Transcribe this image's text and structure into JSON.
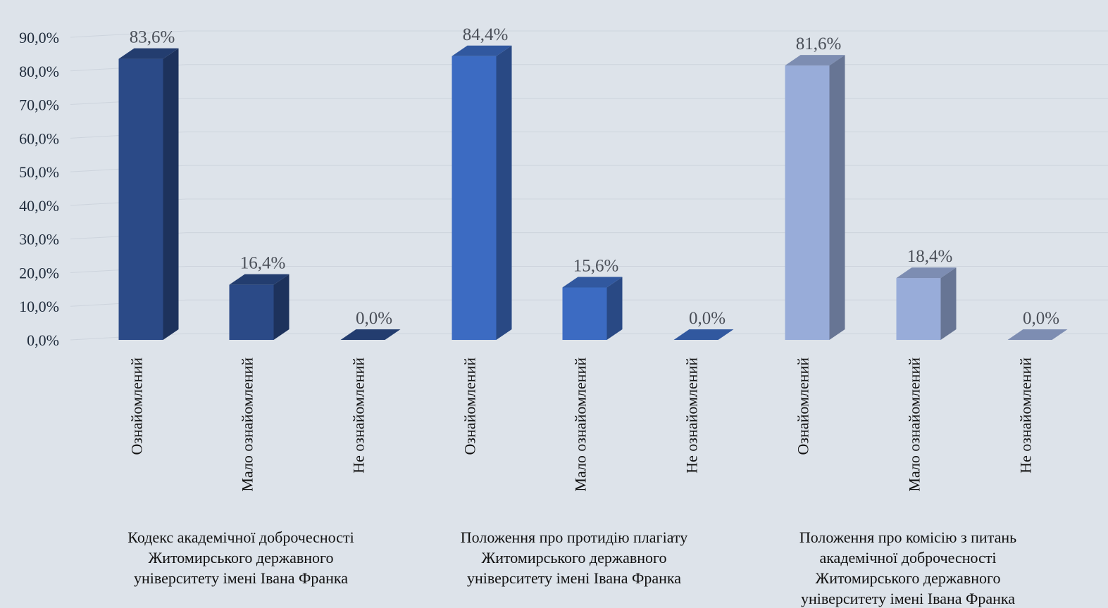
{
  "chart_data": {
    "type": "bar",
    "title": "",
    "xlabel": "",
    "ylabel": "",
    "ylim": [
      0,
      90
    ],
    "y_ticks": [
      "0,0%",
      "10,0%",
      "20,0%",
      "30,0%",
      "40,0%",
      "50,0%",
      "60,0%",
      "70,0%",
      "80,0%",
      "90,0%"
    ],
    "grid": true,
    "legend": "none",
    "groups": [
      {
        "label_lines": [
          "Кодекс академічної доброчесності",
          "Житомирського державного",
          "університету імені  Івана Франка"
        ],
        "categories": [
          "Ознайомлений",
          "Мало ознайомлений",
          "Не ознайомлений"
        ],
        "values": [
          83.6,
          16.4,
          0.0
        ],
        "value_labels": [
          "83,6%",
          "16,4%",
          "0,0%"
        ],
        "color": "#2b4a87"
      },
      {
        "label_lines": [
          "Положення про протидію плагіату",
          "Житомирського державного",
          "університету імені  Івана Франка"
        ],
        "categories": [
          "Ознайомлений",
          "Мало ознайомлений",
          "Не ознайомлений"
        ],
        "values": [
          84.4,
          15.6,
          0.0
        ],
        "value_labels": [
          "84,4%",
          "15,6%",
          "0,0%"
        ],
        "color": "#3c6bc2"
      },
      {
        "label_lines": [
          "Положення про комісію з питань",
          "академічної доброчесності",
          "Житомирського державного",
          "університету імені  Івана Франка"
        ],
        "categories": [
          "Ознайомлений",
          "Мало ознайомлений",
          "Не ознайомлений"
        ],
        "values": [
          81.6,
          18.4,
          0.0
        ],
        "value_labels": [
          "81,6%",
          "18,4%",
          "0,0%"
        ],
        "color": "#98acd9"
      }
    ],
    "colors": {
      "background": "#dde3ea",
      "grid": "#cdd4dd"
    }
  }
}
